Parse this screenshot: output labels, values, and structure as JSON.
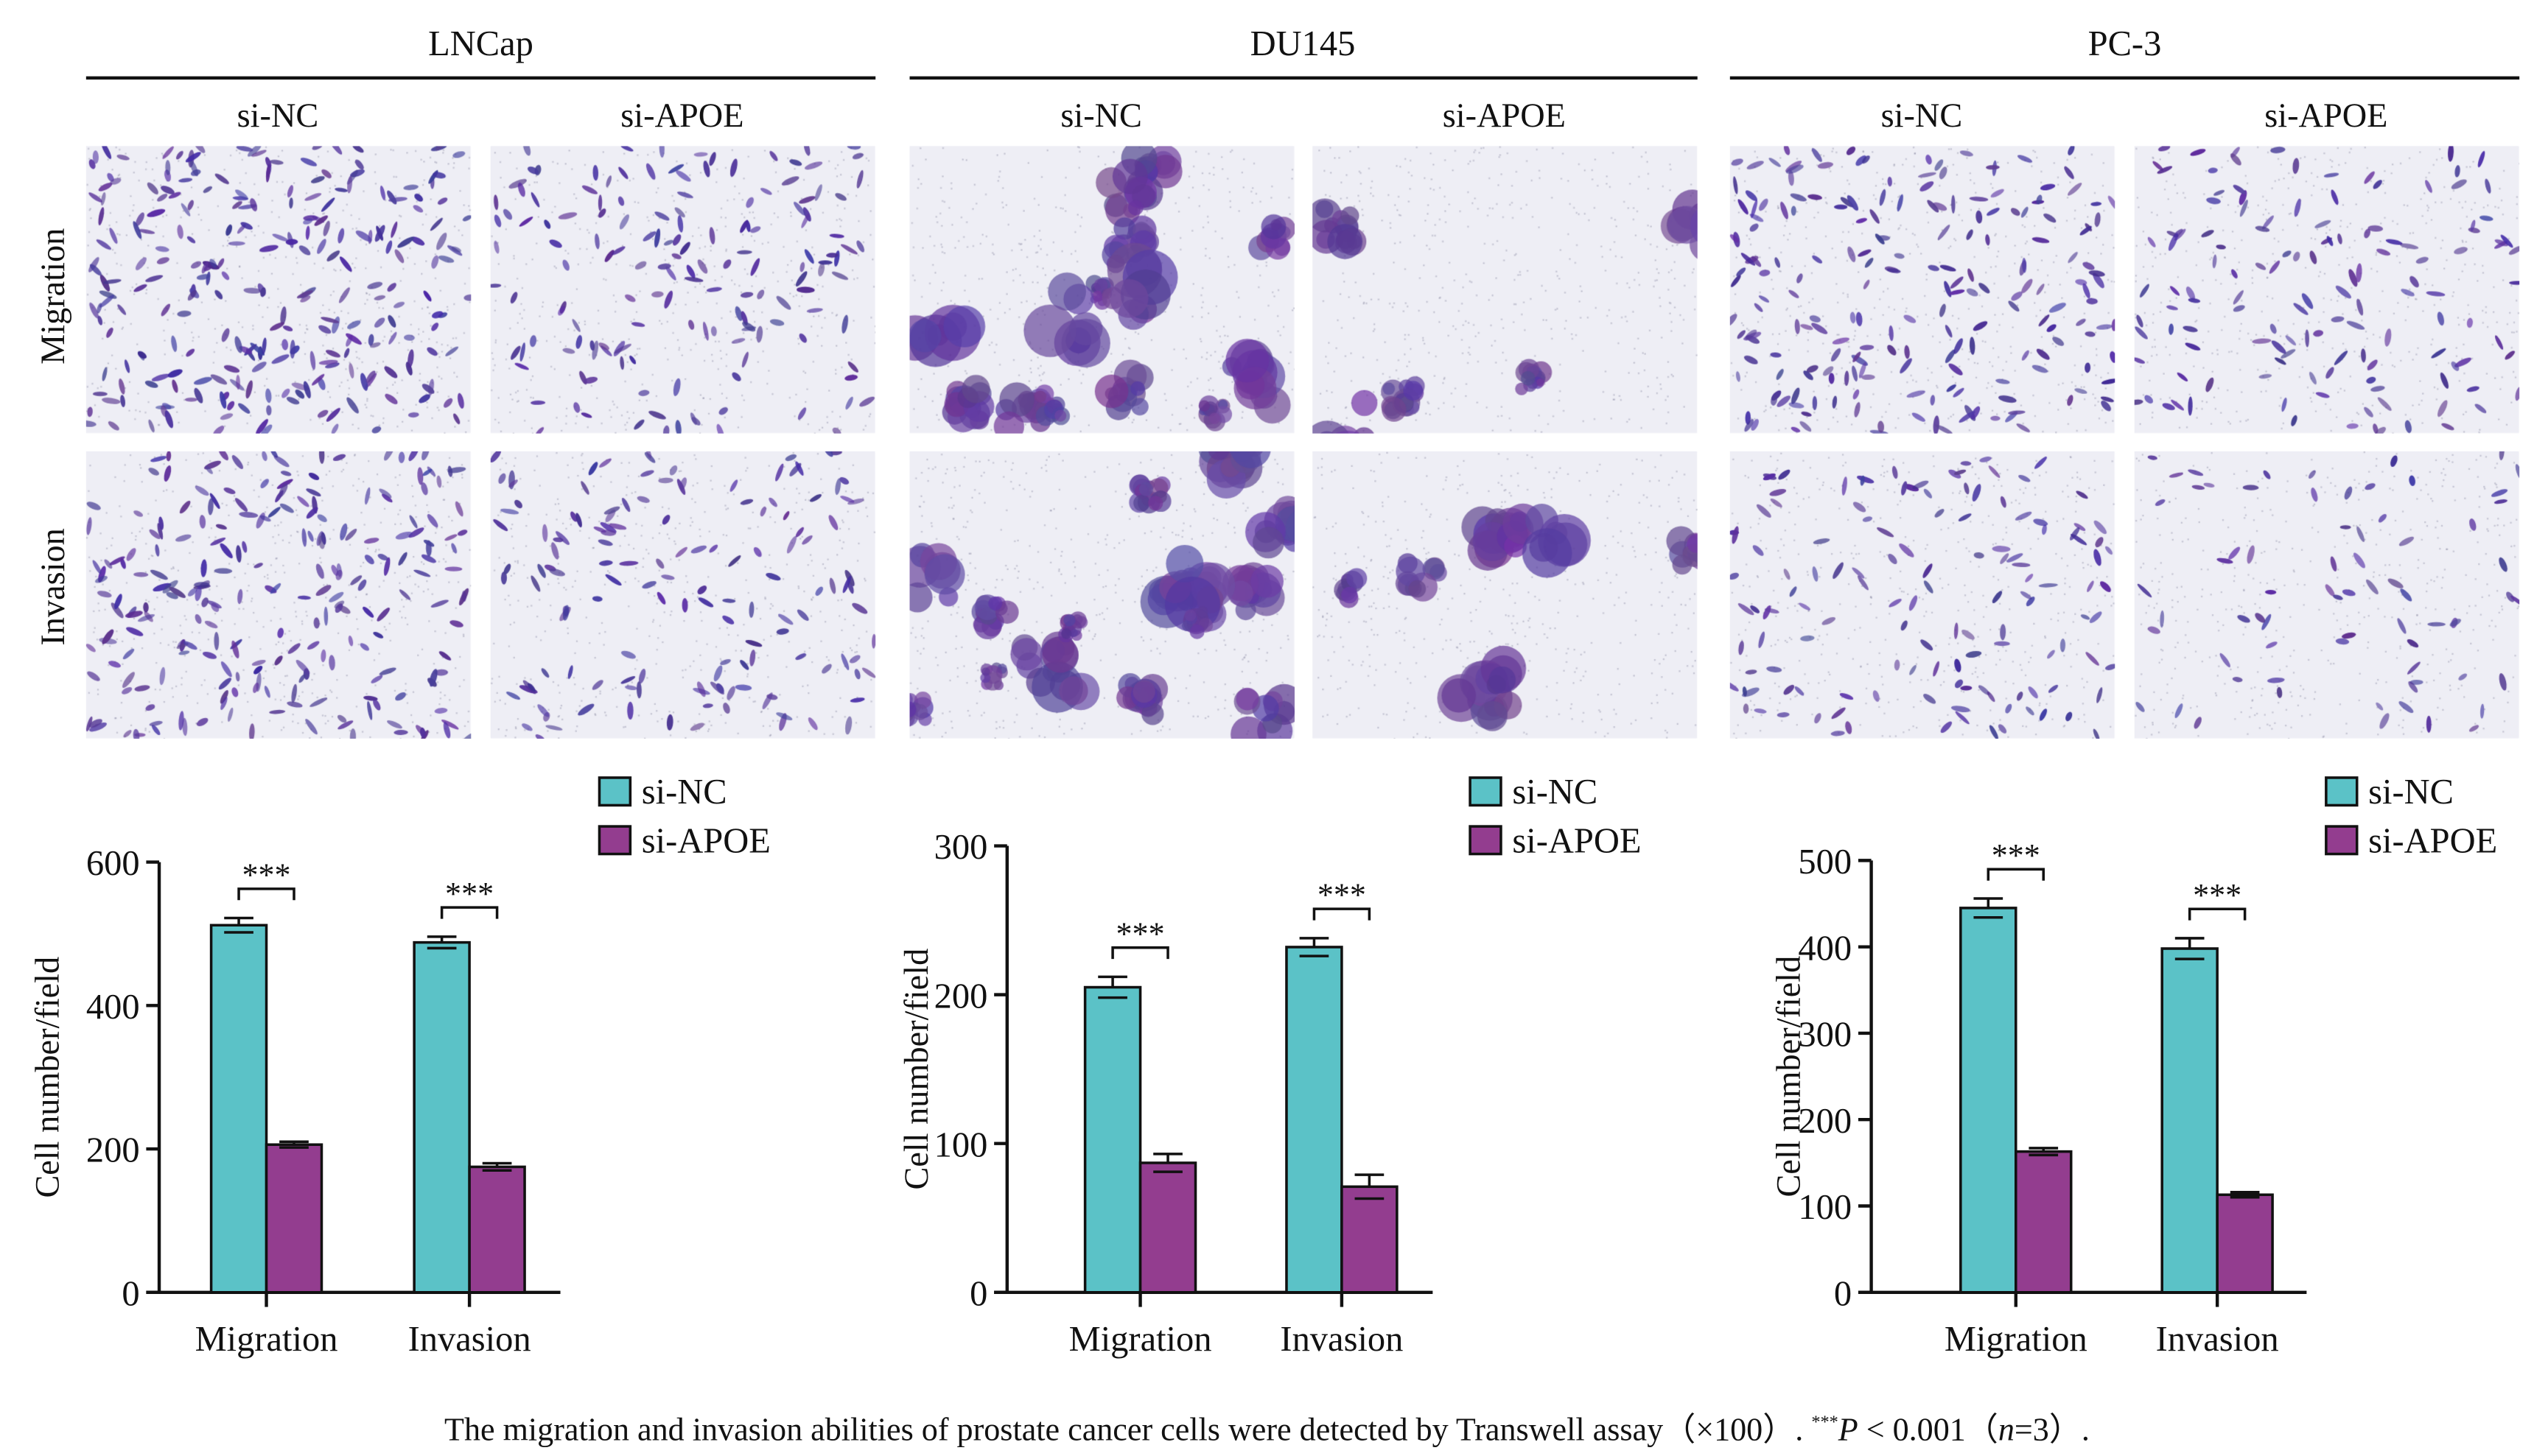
{
  "cell_lines": [
    {
      "name": "LNCap",
      "groups": [
        "si-NC",
        "si-APOE"
      ]
    },
    {
      "name": "DU145",
      "groups": [
        "si-NC",
        "si-APOE"
      ]
    },
    {
      "name": "PC-3",
      "groups": [
        "si-NC",
        "si-APOE"
      ]
    }
  ],
  "row_labels": [
    "Migration",
    "Invasion"
  ],
  "colors": {
    "si_nc": "#5bc2c7",
    "si_apoe": "#933d8f",
    "stain": "#4a2c8c"
  },
  "caption": {
    "text_before": "The migration and invasion abilities of prostate cancer cells were detected by Transwell assay（×100）. ",
    "sig_marker": "***",
    "p_label": "P",
    "text_after": " < 0.001（",
    "n_label": "n",
    "n_value": "=3）."
  },
  "chart_data": [
    {
      "type": "bar",
      "title": "LNCap",
      "ylabel": "Cell number/field",
      "xlabel": "",
      "categories": [
        "Migration",
        "Invasion"
      ],
      "ylim": [
        0,
        600
      ],
      "yticks": [
        0,
        200,
        400,
        600
      ],
      "legend": "top-right",
      "significance": [
        "***",
        "***"
      ],
      "series": [
        {
          "name": "si-NC",
          "values": [
            512,
            488
          ],
          "errors": [
            10,
            8
          ]
        },
        {
          "name": "si-APOE",
          "values": [
            206,
            175
          ],
          "errors": [
            4,
            5
          ]
        }
      ]
    },
    {
      "type": "bar",
      "title": "DU145",
      "ylabel": "Cell number/field",
      "xlabel": "",
      "categories": [
        "Migration",
        "Invasion"
      ],
      "ylim": [
        0,
        300
      ],
      "yticks": [
        0,
        100,
        200,
        300
      ],
      "legend": "top-right",
      "significance": [
        "***",
        "***"
      ],
      "series": [
        {
          "name": "si-NC",
          "values": [
            205,
            232
          ],
          "errors": [
            7,
            6
          ]
        },
        {
          "name": "si-APOE",
          "values": [
            87,
            71
          ],
          "errors": [
            6,
            8
          ]
        }
      ]
    },
    {
      "type": "bar",
      "title": "PC-3",
      "ylabel": "Cell number/field",
      "xlabel": "",
      "categories": [
        "Migration",
        "Invasion"
      ],
      "ylim": [
        0,
        500
      ],
      "yticks": [
        0,
        100,
        200,
        300,
        400,
        500
      ],
      "legend": "top-right",
      "significance": [
        "***",
        "***"
      ],
      "series": [
        {
          "name": "si-NC",
          "values": [
            445,
            398
          ],
          "errors": [
            11,
            12
          ]
        },
        {
          "name": "si-APOE",
          "values": [
            163,
            113
          ],
          "errors": [
            4,
            3
          ]
        }
      ]
    }
  ]
}
